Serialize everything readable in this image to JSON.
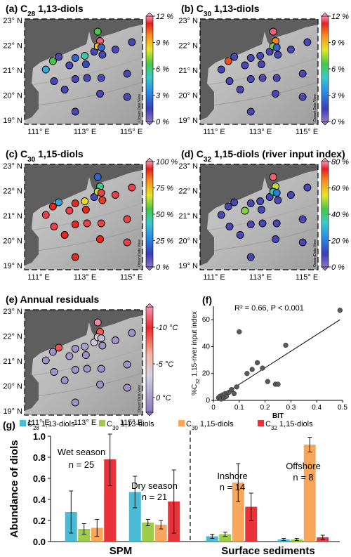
{
  "maps": [
    {
      "id": "a",
      "title": "(a) C",
      "sub": "28",
      "rest": " 1,13-diols",
      "cb": [
        "12 %",
        "9 %",
        "6 %",
        "3 %",
        "0 %"
      ],
      "cbType": "rainbow",
      "points": [
        [
          0.18,
          0.48,
          0.35
        ],
        [
          0.24,
          0.4,
          0.55
        ],
        [
          0.29,
          0.36,
          0.1
        ],
        [
          0.38,
          0.44,
          0.1
        ],
        [
          0.43,
          0.37,
          0.2
        ],
        [
          0.51,
          0.35,
          0.45
        ],
        [
          0.52,
          0.43,
          0.15
        ],
        [
          0.59,
          0.31,
          0.1
        ],
        [
          0.62,
          0.12,
          0.55
        ],
        [
          0.64,
          0.21,
          0.97
        ],
        [
          0.62,
          0.26,
          0.75
        ],
        [
          0.65,
          0.27,
          0.2
        ],
        [
          0.66,
          0.34,
          0.1
        ],
        [
          0.77,
          0.29,
          0.1
        ],
        [
          0.91,
          0.22,
          0.1
        ],
        [
          0.25,
          0.59,
          0.1
        ],
        [
          0.43,
          0.57,
          0.1
        ],
        [
          0.53,
          0.56,
          0.1
        ],
        [
          0.65,
          0.56,
          0.1
        ],
        [
          0.87,
          0.52,
          0.1
        ],
        [
          0.34,
          0.67,
          0.1
        ],
        [
          0.64,
          0.71,
          0.1
        ],
        [
          0.87,
          0.74,
          0.1
        ],
        [
          0.43,
          0.88,
          0.1
        ]
      ]
    },
    {
      "id": "b",
      "title": "(b) C",
      "sub": "30",
      "rest": " 1,13-diols",
      "cb": [
        "12 %",
        "9 %",
        "6 %",
        "3 %",
        "0 %"
      ],
      "cbType": "rainbow",
      "points": [
        [
          0.18,
          0.48,
          0.1
        ],
        [
          0.24,
          0.4,
          0.88
        ],
        [
          0.29,
          0.36,
          0.1
        ],
        [
          0.38,
          0.44,
          0.1
        ],
        [
          0.43,
          0.37,
          0.1
        ],
        [
          0.51,
          0.35,
          0.1
        ],
        [
          0.52,
          0.43,
          0.1
        ],
        [
          0.59,
          0.31,
          0.1
        ],
        [
          0.62,
          0.12,
          0.97
        ],
        [
          0.64,
          0.21,
          0.83
        ],
        [
          0.62,
          0.26,
          0.6
        ],
        [
          0.65,
          0.27,
          0.2
        ],
        [
          0.66,
          0.34,
          0.1
        ],
        [
          0.77,
          0.29,
          0.1
        ],
        [
          0.91,
          0.22,
          0.1
        ],
        [
          0.25,
          0.59,
          0.1
        ],
        [
          0.43,
          0.57,
          0.1
        ],
        [
          0.53,
          0.56,
          0.1
        ],
        [
          0.65,
          0.56,
          0.1
        ],
        [
          0.87,
          0.52,
          0.1
        ],
        [
          0.34,
          0.67,
          0.1
        ],
        [
          0.64,
          0.71,
          0.1
        ],
        [
          0.87,
          0.74,
          0.1
        ],
        [
          0.43,
          0.88,
          0.1
        ]
      ]
    },
    {
      "id": "c",
      "title": "(c) C",
      "sub": "30",
      "rest": " 1,15-diols",
      "cb": [
        "100 %",
        "75 %",
        "50 %",
        "25 %",
        "0 %"
      ],
      "cbType": "rainbow",
      "points": [
        [
          0.18,
          0.48,
          0.95
        ],
        [
          0.24,
          0.4,
          0.92
        ],
        [
          0.29,
          0.36,
          0.35
        ],
        [
          0.38,
          0.44,
          0.95
        ],
        [
          0.43,
          0.37,
          0.92
        ],
        [
          0.51,
          0.35,
          0.7
        ],
        [
          0.52,
          0.43,
          0.92
        ],
        [
          0.59,
          0.31,
          0.1
        ],
        [
          0.62,
          0.12,
          0.2
        ],
        [
          0.64,
          0.21,
          0.48
        ],
        [
          0.62,
          0.26,
          0.65
        ],
        [
          0.65,
          0.27,
          0.95
        ],
        [
          0.66,
          0.34,
          0.9
        ],
        [
          0.77,
          0.29,
          0.95
        ],
        [
          0.91,
          0.22,
          0.95
        ],
        [
          0.25,
          0.59,
          0.95
        ],
        [
          0.43,
          0.57,
          0.92
        ],
        [
          0.53,
          0.56,
          0.95
        ],
        [
          0.65,
          0.56,
          0.95
        ],
        [
          0.87,
          0.52,
          0.95
        ],
        [
          0.34,
          0.67,
          0.92
        ],
        [
          0.64,
          0.71,
          0.92
        ],
        [
          0.87,
          0.74,
          0.95
        ],
        [
          0.43,
          0.88,
          0.92
        ]
      ]
    },
    {
      "id": "d",
      "title": "(d) C",
      "sub": "32",
      "rest": " 1,15-diols (river input index)",
      "cb": [
        "80 %",
        "60 %",
        "40 %",
        "20 %",
        "0 %"
      ],
      "cbType": "rainbow",
      "points": [
        [
          0.18,
          0.48,
          0.1
        ],
        [
          0.24,
          0.4,
          0.1
        ],
        [
          0.29,
          0.36,
          0.1
        ],
        [
          0.38,
          0.44,
          0.6
        ],
        [
          0.43,
          0.37,
          0.1
        ],
        [
          0.51,
          0.35,
          0.1
        ],
        [
          0.52,
          0.43,
          0.1
        ],
        [
          0.59,
          0.31,
          0.1
        ],
        [
          0.62,
          0.12,
          0.97
        ],
        [
          0.64,
          0.21,
          0.65
        ],
        [
          0.62,
          0.26,
          0.45
        ],
        [
          0.65,
          0.27,
          0.25
        ],
        [
          0.66,
          0.34,
          0.1
        ],
        [
          0.77,
          0.29,
          0.1
        ],
        [
          0.91,
          0.22,
          0.1
        ],
        [
          0.25,
          0.59,
          0.1
        ],
        [
          0.43,
          0.57,
          0.1
        ],
        [
          0.53,
          0.56,
          0.1
        ],
        [
          0.65,
          0.56,
          0.1
        ],
        [
          0.87,
          0.52,
          0.1
        ],
        [
          0.34,
          0.67,
          0.1
        ],
        [
          0.64,
          0.71,
          0.1
        ],
        [
          0.87,
          0.74,
          0.1
        ],
        [
          0.43,
          0.88,
          0.1
        ]
      ]
    },
    {
      "id": "e",
      "title": "(e) Annual residuals",
      "sub": "",
      "rest": "",
      "cb": [
        "-10 °C",
        "-5 °C",
        "0 °C"
      ],
      "cbType": "residual",
      "points": [
        [
          0.18,
          0.48,
          0.1
        ],
        [
          0.24,
          0.4,
          0.1
        ],
        [
          0.29,
          0.36,
          0.72
        ],
        [
          0.38,
          0.44,
          0.12
        ],
        [
          0.43,
          0.37,
          0.1
        ],
        [
          0.51,
          0.35,
          0.15
        ],
        [
          0.52,
          0.43,
          0.1
        ],
        [
          0.59,
          0.31,
          0.3
        ],
        [
          0.62,
          0.12,
          0.97
        ],
        [
          0.64,
          0.21,
          0.7
        ],
        [
          0.62,
          0.26,
          0.4
        ],
        [
          0.65,
          0.27,
          0.25
        ],
        [
          0.66,
          0.34,
          0.1
        ],
        [
          0.77,
          0.29,
          0.1
        ],
        [
          0.91,
          0.22,
          0.1
        ],
        [
          0.25,
          0.59,
          0.1
        ],
        [
          0.43,
          0.57,
          0.1
        ],
        [
          0.53,
          0.56,
          0.1
        ],
        [
          0.65,
          0.56,
          0.1
        ],
        [
          0.87,
          0.52,
          0.1
        ],
        [
          0.34,
          0.67,
          0.1
        ],
        [
          0.64,
          0.71,
          0.1
        ],
        [
          0.87,
          0.74,
          0.1
        ],
        [
          0.43,
          0.88,
          0.1
        ]
      ]
    }
  ],
  "map_axes": {
    "lat_labels": [
      "23° N",
      "22° N",
      "21° N",
      "20° N",
      "19° N"
    ],
    "lon_labels": [
      "111° E",
      "113° E",
      "115° E"
    ],
    "watermark": "Ocean Data View"
  },
  "scatter": {
    "title": "(f)",
    "annotation": "R² = 0.66, P < 0.001",
    "xlabel": "BIT",
    "ylabel_parts": [
      "%C",
      "32",
      " 1,15-river input index"
    ],
    "x_ticks": [
      "0",
      "0.1",
      "0.2",
      "0.3",
      "0.4",
      "0.5"
    ],
    "y_ticks": [
      "0",
      "20",
      "40",
      "60"
    ],
    "xlim": [
      0,
      0.5
    ],
    "ylim": [
      0,
      70
    ],
    "points": [
      [
        0.02,
        2
      ],
      [
        0.025,
        3
      ],
      [
        0.03,
        1
      ],
      [
        0.035,
        4
      ],
      [
        0.04,
        2
      ],
      [
        0.045,
        5
      ],
      [
        0.05,
        3
      ],
      [
        0.06,
        6
      ],
      [
        0.07,
        8
      ],
      [
        0.08,
        5
      ],
      [
        0.09,
        10
      ],
      [
        0.1,
        51
      ],
      [
        0.13,
        20
      ],
      [
        0.15,
        23
      ],
      [
        0.17,
        28
      ],
      [
        0.19,
        24
      ],
      [
        0.21,
        14
      ],
      [
        0.24,
        12
      ],
      [
        0.25,
        12
      ],
      [
        0.28,
        41
      ],
      [
        0.49,
        67
      ]
    ],
    "fit": [
      [
        0.02,
        2
      ],
      [
        0.49,
        60
      ]
    ]
  },
  "chart_data": {
    "type": "bar",
    "title": "(g)",
    "ylabel": "Abundance of diols",
    "ylim": [
      0,
      1.0
    ],
    "y_ticks": [
      "0.0",
      "0.2",
      "0.4",
      "0.6",
      "0.8",
      "1.0"
    ],
    "group_labels": [
      "SPM",
      "Surface sediments"
    ],
    "categories": [
      "Wet season",
      "Dry season",
      "Inshore",
      "Offshore"
    ],
    "category_counts": [
      "n = 25",
      "n = 21",
      "n = 14",
      "n = 8"
    ],
    "series": [
      {
        "name": "C28 1,13-diols",
        "sub": "28",
        "prefix": "C",
        "suffix": " 1,13-diols",
        "color": "#4bbad4",
        "values": [
          0.28,
          0.47,
          0.05,
          0.02
        ],
        "err": [
          0.2,
          0.15,
          0.02,
          0.01
        ]
      },
      {
        "name": "C30 1,13-diols",
        "sub": "30",
        "prefix": "C",
        "suffix": " 1,13-diols",
        "color": "#9ccc4a",
        "values": [
          0.12,
          0.18,
          0.07,
          0.02
        ],
        "err": [
          0.05,
          0.03,
          0.02,
          0.01
        ]
      },
      {
        "name": "C30 1,15-diols",
        "sub": "30",
        "prefix": "C",
        "suffix": " 1,15-diols",
        "color": "#f7a65c",
        "values": [
          0.13,
          0.16,
          0.56,
          0.92
        ],
        "err": [
          0.08,
          0.04,
          0.18,
          0.07
        ]
      },
      {
        "name": "C32 1,15-diols",
        "sub": "32",
        "prefix": "C",
        "suffix": " 1,15-diols",
        "color": "#e8333b",
        "values": [
          0.78,
          0.38,
          0.33,
          0.04
        ],
        "err": [
          0.25,
          0.3,
          0.13,
          0.02
        ]
      }
    ]
  }
}
